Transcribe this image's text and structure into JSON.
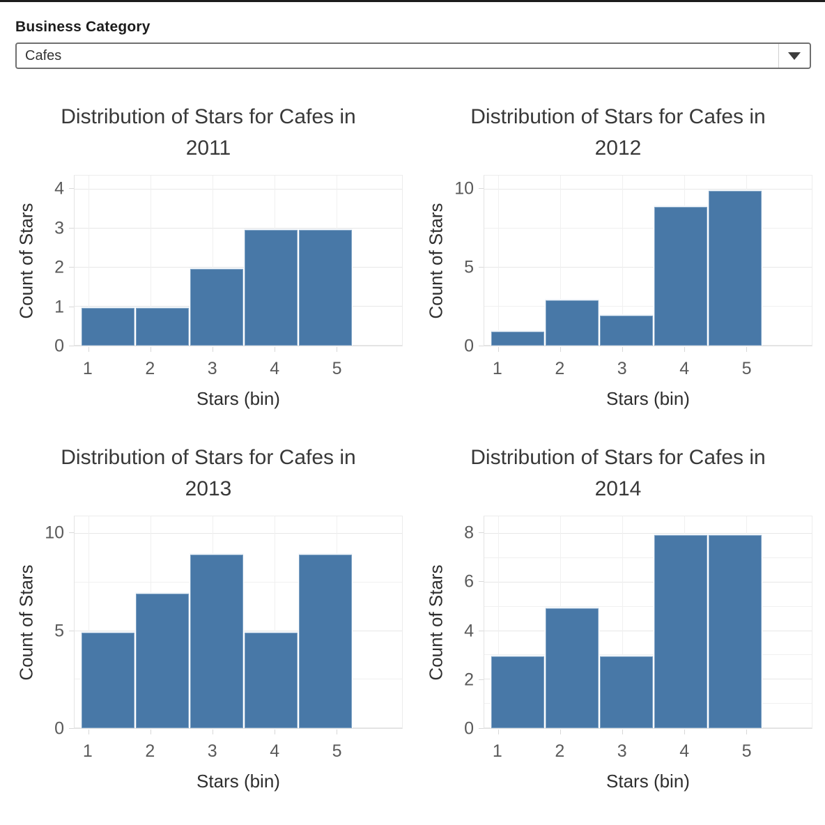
{
  "filter": {
    "label": "Business Category",
    "selected_value": "Cafes",
    "icon": "caret-down-icon"
  },
  "colors": {
    "bar_fill": "#4878a7",
    "grid_major": "#e7e7e7",
    "grid_minor": "#f0f0f0",
    "tick_text": "#5a5a5a",
    "title_text": "#383838",
    "dropdown_border": "#6f6f6f"
  },
  "chart_data": [
    {
      "type": "bar",
      "title": "Distribution of Stars for Cafes in 2011",
      "title_lines": [
        "Distribution of Stars for Cafes in",
        "2011"
      ],
      "xlabel": "Stars (bin)",
      "ylabel": "Count of Stars",
      "categories": [
        "1",
        "2",
        "3",
        "4",
        "5"
      ],
      "values": [
        1,
        1,
        2,
        3,
        3
      ],
      "y_ticks": [
        0,
        1,
        2,
        3,
        4
      ],
      "y_minor_step": 1,
      "ylim": [
        0,
        4
      ],
      "grid": "on",
      "legend": "none"
    },
    {
      "type": "bar",
      "title": "Distribution of Stars for Cafes in 2012",
      "title_lines": [
        "Distribution of Stars for Cafes in",
        "2012"
      ],
      "xlabel": "Stars (bin)",
      "ylabel": "Count of Stars",
      "categories": [
        "1",
        "2",
        "3",
        "4",
        "5"
      ],
      "values": [
        1,
        3,
        2,
        9,
        10
      ],
      "y_ticks": [
        0,
        5,
        10
      ],
      "y_minor_step": 2.5,
      "ylim": [
        0,
        10
      ],
      "grid": "on",
      "legend": "none"
    },
    {
      "type": "bar",
      "title": "Distribution of Stars for Cafes in 2013",
      "title_lines": [
        "Distribution of Stars for Cafes in",
        "2013"
      ],
      "xlabel": "Stars (bin)",
      "ylabel": "Count of Stars",
      "categories": [
        "1",
        "2",
        "3",
        "4",
        "5"
      ],
      "values": [
        5,
        7,
        9,
        5,
        9
      ],
      "y_ticks": [
        0,
        5,
        10
      ],
      "y_minor_step": 2.5,
      "ylim": [
        0,
        10
      ],
      "grid": "on",
      "legend": "none"
    },
    {
      "type": "bar",
      "title": "Distribution of Stars for Cafes in 2014",
      "title_lines": [
        "Distribution of Stars for Cafes in",
        "2014"
      ],
      "xlabel": "Stars (bin)",
      "ylabel": "Count of Stars",
      "categories": [
        "1",
        "2",
        "3",
        "4",
        "5"
      ],
      "values": [
        3,
        5,
        3,
        8,
        8
      ],
      "y_ticks": [
        0,
        2,
        4,
        6,
        8
      ],
      "y_minor_step": 1,
      "ylim": [
        0,
        8
      ],
      "grid": "on",
      "legend": "none"
    }
  ]
}
